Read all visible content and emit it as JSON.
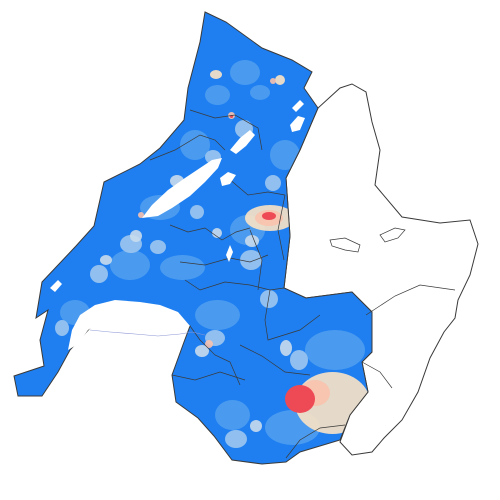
{
  "map": {
    "palette": {
      "background": "#ffffff",
      "base": "#1f7ff0",
      "mid": "#4f9ef0",
      "light": "#9cc6f0",
      "pale": "#c9dcec",
      "cream": "#fbe3c4",
      "peach": "#f8c2ad",
      "red": "#ee4a55",
      "lake": "#ffffff",
      "border": "#3a3a3a",
      "river": "#8e96d6"
    }
  }
}
